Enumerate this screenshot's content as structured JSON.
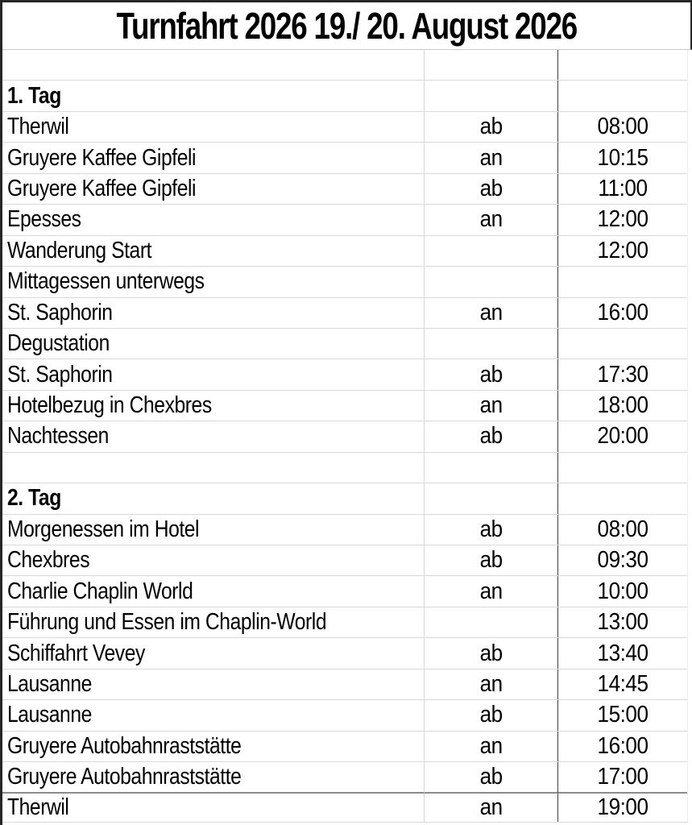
{
  "title": "Turnfahrt 2026 19./ 20. August 2026",
  "colors": {
    "background": "#ffffff",
    "text": "#000000",
    "page_border": "#262626",
    "grid_line": "#d9d9d9",
    "dark_column_line": "#3f3f3f",
    "page_break_line": "#8c8c8c"
  },
  "table": {
    "columns": [
      "description",
      "direction",
      "time"
    ],
    "rows": [
      {
        "label": "",
        "dir": "",
        "time": "",
        "bold": false
      },
      {
        "label": "1. Tag",
        "dir": "",
        "time": "",
        "bold": true
      },
      {
        "label": "Therwil",
        "dir": "ab",
        "time": "08:00",
        "bold": false
      },
      {
        "label": "Gruyere Kaffee Gipfeli",
        "dir": "an",
        "time": "10:15",
        "bold": false
      },
      {
        "label": "Gruyere Kaffee Gipfeli",
        "dir": "ab",
        "time": "11:00",
        "bold": false
      },
      {
        "label": "Epesses",
        "dir": "an",
        "time": "12:00",
        "bold": false
      },
      {
        "label": "Wanderung Start",
        "dir": "",
        "time": "12:00",
        "bold": false
      },
      {
        "label": "Mittagessen unterwegs",
        "dir": "",
        "time": "",
        "bold": false
      },
      {
        "label": "St. Saphorin",
        "dir": "an",
        "time": "16:00",
        "bold": false
      },
      {
        "label": "Degustation",
        "dir": "",
        "time": "",
        "bold": false
      },
      {
        "label": "St. Saphorin",
        "dir": "ab",
        "time": "17:30",
        "bold": false
      },
      {
        "label": "Hotelbezug in Chexbres",
        "dir": "an",
        "time": "18:00",
        "bold": false
      },
      {
        "label": "Nachtessen",
        "dir": "ab",
        "time": "20:00",
        "bold": false
      },
      {
        "label": "",
        "dir": "",
        "time": "",
        "bold": false
      },
      {
        "label": "2. Tag",
        "dir": "",
        "time": "",
        "bold": true
      },
      {
        "label": "Morgenessen im Hotel",
        "dir": "ab",
        "time": "08:00",
        "bold": false
      },
      {
        "label": "Chexbres",
        "dir": "ab",
        "time": "09:30",
        "bold": false
      },
      {
        "label": "Charlie Chaplin World",
        "dir": "an",
        "time": "10:00",
        "bold": false
      },
      {
        "label": "Führung und Essen im Chaplin-World",
        "dir": "",
        "time": "13:00",
        "bold": false
      },
      {
        "label": "Schiffahrt Vevey",
        "dir": "ab",
        "time": "13:40",
        "bold": false
      },
      {
        "label": "Lausanne",
        "dir": "an",
        "time": "14:45",
        "bold": false
      },
      {
        "label": "Lausanne",
        "dir": "ab",
        "time": "15:00",
        "bold": false
      },
      {
        "label": "Gruyere Autobahnraststätte",
        "dir": "an",
        "time": "16:00",
        "bold": false
      },
      {
        "label": "Gruyere Autobahnraststätte",
        "dir": "ab",
        "time": "17:00",
        "bold": false
      },
      {
        "label": "Therwil",
        "dir": "an",
        "time": "19:00",
        "bold": false,
        "top_divider": true
      }
    ]
  }
}
